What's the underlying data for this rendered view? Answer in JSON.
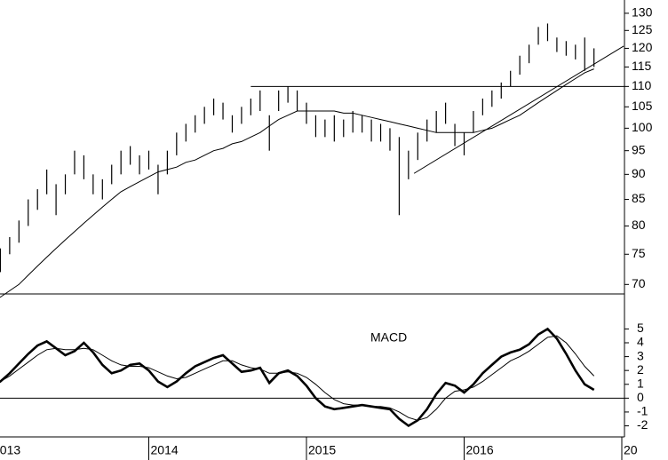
{
  "chart_data": {
    "type": "stock",
    "color": "#000000",
    "log_y": true,
    "ylim": [
      68.5,
      134
    ],
    "yticks": [
      70,
      75,
      80,
      85,
      90,
      95,
      100,
      105,
      110,
      115,
      120,
      125,
      130
    ],
    "categories": [
      "2013",
      null,
      null,
      null,
      null,
      null,
      null,
      null,
      null,
      null,
      null,
      null,
      null,
      null,
      null,
      null,
      null,
      "2014",
      null,
      null,
      null,
      null,
      null,
      null,
      null,
      null,
      null,
      null,
      null,
      null,
      null,
      null,
      null,
      null,
      "2015",
      null,
      null,
      null,
      null,
      null,
      null,
      null,
      null,
      null,
      null,
      null,
      null,
      null,
      null,
      null,
      null,
      "2016",
      null,
      null,
      null,
      null,
      null,
      null,
      null,
      null,
      null,
      null,
      null,
      null,
      null,
      null,
      null,
      null,
      "20"
    ],
    "high": [
      74,
      76,
      78,
      81,
      85,
      87,
      91,
      88,
      90,
      95,
      94,
      90,
      89,
      92,
      95,
      96,
      94,
      95,
      92,
      95,
      99,
      101,
      103,
      105,
      107,
      106,
      103,
      105,
      107,
      109,
      103,
      109,
      110,
      109,
      106,
      103,
      102,
      103,
      102,
      104,
      103,
      102,
      101,
      100,
      98,
      95,
      99,
      102,
      104,
      106,
      101,
      99,
      104,
      107,
      109,
      111,
      114,
      118,
      121,
      126,
      127,
      123,
      122,
      121,
      123,
      120,
      null,
      null,
      null
    ],
    "low": [
      71,
      72,
      75,
      77,
      80,
      83,
      86,
      82,
      86,
      90,
      89,
      86,
      85,
      88,
      90,
      92,
      90,
      91,
      86,
      90,
      94,
      97,
      99,
      101,
      103,
      102,
      99,
      101,
      103,
      104,
      95,
      104,
      106,
      104,
      101,
      98,
      98,
      97,
      98,
      99,
      99,
      97,
      97,
      95,
      82,
      89,
      93,
      97,
      99,
      101,
      96,
      94,
      99,
      103,
      105,
      107,
      110,
      113,
      116,
      121,
      122,
      119,
      118,
      117,
      114,
      115,
      null,
      null,
      null
    ],
    "moving_average": [
      67.5,
      68,
      69,
      70,
      71.5,
      73,
      74.5,
      76,
      77.5,
      79,
      80.5,
      82,
      83.5,
      85,
      86.5,
      87.5,
      88.5,
      89.5,
      90.5,
      91,
      91.5,
      92.5,
      93,
      94,
      95,
      95.5,
      96.5,
      97,
      98,
      99,
      100.5,
      102,
      103,
      104,
      104,
      104,
      104,
      104,
      103.5,
      103.5,
      103,
      102.5,
      102,
      101.5,
      101,
      100.5,
      100,
      99.5,
      99,
      99,
      99,
      99,
      99,
      99.5,
      100,
      101,
      102,
      103,
      104.5,
      106,
      107.5,
      109,
      110.5,
      112,
      113.5,
      114.5,
      null,
      null,
      null
    ],
    "level_line": {
      "value": 110,
      "from": 28
    },
    "trendline": {
      "from": [
        45.6,
        90.2
      ],
      "to": [
        68.2,
        120.6
      ]
    },
    "lower": {
      "type": "line",
      "label": "MACD",
      "ylim": [
        -2.8,
        7.4
      ],
      "yticks": [
        -2,
        -1,
        0,
        1,
        2,
        3,
        4,
        5
      ],
      "zero_line": true,
      "macd": [
        0.8,
        1.2,
        1.8,
        2.5,
        3.2,
        3.8,
        4.1,
        3.6,
        3.1,
        3.4,
        4.0,
        3.3,
        2.4,
        1.8,
        2.0,
        2.4,
        2.5,
        2.0,
        1.2,
        0.8,
        1.2,
        1.8,
        2.3,
        2.6,
        2.9,
        3.1,
        2.5,
        1.9,
        2.0,
        2.2,
        1.1,
        1.8,
        2.0,
        1.6,
        0.9,
        0.0,
        -0.6,
        -0.8,
        -0.7,
        -0.6,
        -0.5,
        -0.6,
        -0.7,
        -0.8,
        -1.5,
        -2.0,
        -1.6,
        -0.8,
        0.3,
        1.1,
        0.9,
        0.4,
        1.0,
        1.8,
        2.4,
        3.0,
        3.3,
        3.5,
        3.9,
        4.6,
        5.0,
        4.3,
        3.2,
        2.0,
        1.0,
        0.6,
        null,
        null,
        null
      ],
      "signal": [
        1.0,
        1.2,
        1.6,
        2.1,
        2.6,
        3.1,
        3.5,
        3.6,
        3.5,
        3.5,
        3.6,
        3.5,
        3.1,
        2.7,
        2.4,
        2.3,
        2.3,
        2.2,
        1.9,
        1.6,
        1.4,
        1.5,
        1.8,
        2.1,
        2.4,
        2.7,
        2.7,
        2.4,
        2.2,
        2.1,
        1.8,
        1.8,
        1.9,
        1.8,
        1.5,
        1.0,
        0.4,
        -0.1,
        -0.4,
        -0.5,
        -0.5,
        -0.6,
        -0.6,
        -0.7,
        -1.0,
        -1.4,
        -1.6,
        -1.4,
        -0.8,
        0.0,
        0.5,
        0.6,
        0.8,
        1.2,
        1.7,
        2.2,
        2.7,
        3.0,
        3.4,
        3.9,
        4.4,
        4.5,
        4.0,
        3.2,
        2.3,
        1.6,
        null,
        null,
        null
      ]
    }
  }
}
